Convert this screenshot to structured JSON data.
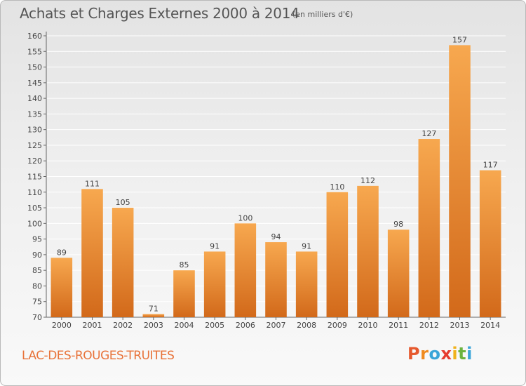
{
  "header": {
    "title": "Achats et Charges Externes 2000 à 2014",
    "unit": "(en milliers d'€)"
  },
  "footer": {
    "commune": "LAC-DES-ROUGES-TRUITES",
    "logo_text": "Proxiti",
    "logo_colors": [
      "#e6592e",
      "#f08a1d",
      "#3aa5d8",
      "#e63b2e",
      "#f0b21d",
      "#6cb33f",
      "#3aa5d8"
    ]
  },
  "colors": {
    "bar_top": "#f7a84f",
    "bar_bottom": "#d2691a",
    "grid": "#ffffff",
    "axis": "#666666"
  },
  "chart_data": {
    "type": "bar",
    "title": "Achats et Charges Externes 2000 à 2014",
    "subtitle": "(en milliers d'€)",
    "xlabel": "",
    "ylabel": "",
    "categories": [
      "2000",
      "2001",
      "2002",
      "2003",
      "2004",
      "2005",
      "2006",
      "2007",
      "2008",
      "2009",
      "2010",
      "2011",
      "2012",
      "2013",
      "2014"
    ],
    "values": [
      89,
      111,
      105,
      71,
      85,
      91,
      100,
      94,
      91,
      110,
      112,
      98,
      127,
      157,
      117
    ],
    "ylim": [
      70,
      160
    ],
    "yticks": [
      70,
      75,
      80,
      85,
      90,
      95,
      100,
      105,
      110,
      115,
      120,
      125,
      130,
      135,
      140,
      145,
      150,
      155,
      160
    ],
    "grid": true,
    "legend": "none"
  }
}
